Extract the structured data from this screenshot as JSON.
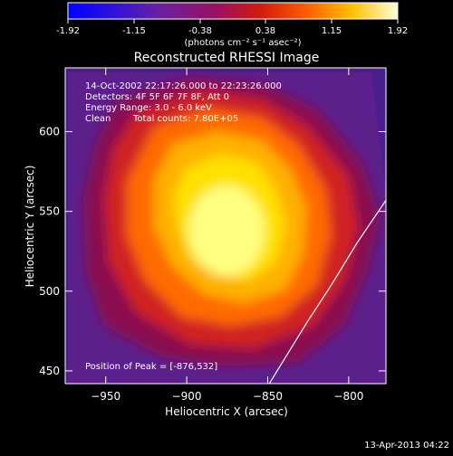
{
  "chart_data": {
    "type": "heatmap",
    "title": "Reconstructed RHESSI Image",
    "colorbar": {
      "ticks": [
        "-1.92",
        "-1.15",
        "-0.38",
        "0.38",
        "1.15",
        "1.92"
      ],
      "tick_values": [
        -1.92,
        -1.15,
        -0.38,
        0.38,
        1.15,
        1.92
      ],
      "range": [
        -1.92,
        1.92
      ],
      "unit_label": "(photons cm⁻² s⁻¹ asec⁻²)",
      "colormap": "blue-purple-red-orange-yellow-white"
    },
    "xlabel": "Heliocentric X (arcsec)",
    "ylabel": "Heliocentric Y (arcsec)",
    "xlim": [
      -975,
      -777
    ],
    "ylim": [
      442,
      640
    ],
    "x_ticks": [
      -950,
      -900,
      -850,
      -800
    ],
    "x_tick_labels": [
      "−950",
      "−900",
      "−850",
      "−800"
    ],
    "y_ticks": [
      450,
      500,
      550,
      600
    ],
    "y_tick_labels": [
      "450",
      "500",
      "550",
      "600"
    ],
    "annotations": [
      "14-Oct-2002 22:17:26.000 to 22:23:26.000",
      "Detectors: 4F 5F 6F 7F 8F, Att 0",
      "Energy Range: 3.0 - 6.0 keV",
      "Clean",
      "Total counts: 7.80E+05"
    ],
    "peak_label": "Position of Peak = [-876,532]",
    "peak": {
      "x": -876,
      "y": 532
    },
    "limb_curve": {
      "x": [
        -849,
        -826,
        -810,
        -795,
        -777
      ],
      "y": [
        442,
        480,
        505,
        530,
        557
      ]
    }
  },
  "footer": {
    "timestamp": "13-Apr-2013 04:22"
  },
  "colors": {
    "background": "#000000",
    "foreground": "#ffffff",
    "colormap_stops": [
      "#0020ff",
      "#4a1aa0",
      "#6a1a7a",
      "#b01030",
      "#e83010",
      "#ff8a00",
      "#ffd800",
      "#ffffff"
    ]
  }
}
